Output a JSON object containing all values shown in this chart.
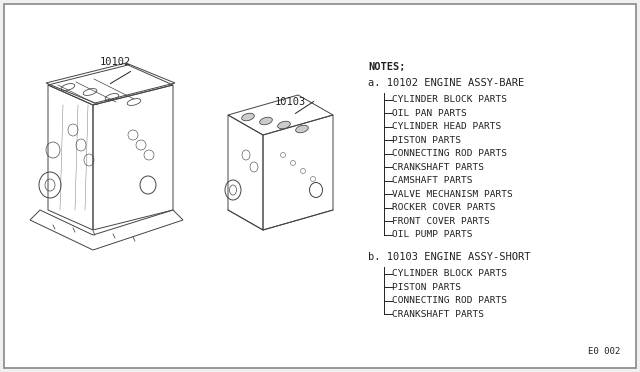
{
  "bg_color": "#f0f0f0",
  "border_color": "#888888",
  "line_color": "#444444",
  "text_color": "#222222",
  "title_part_a": "10102",
  "title_part_b": "10103",
  "notes_title": "NOTES;",
  "section_a_title": "a. 10102 ENGINE ASSY-BARE",
  "section_a_items": [
    "CYLINDER BLOCK PARTS",
    "OIL PAN PARTS",
    "CYLINDER HEAD PARTS",
    "PISTON PARTS",
    "CONNECTING ROD PARTS",
    "CRANKSHAFT PARTS",
    "CAMSHAFT PARTS",
    "VALVE MECHANISM PARTS",
    "ROCKER COVER PARTS",
    "FRONT COVER PARTS",
    "OIL PUMP PARTS"
  ],
  "section_b_title": "b. 10103 ENGINE ASSY-SHORT",
  "section_b_items": [
    "CYLINDER BLOCK PARTS",
    "PISTON PARTS",
    "CONNECTING ROD PARTS",
    "CRANKSHAFT PARTS"
  ],
  "page_num": "E0 002",
  "font_size_notes": 7.5,
  "font_size_items": 6.8,
  "font_size_labels": 7.5,
  "font_family": "monospace"
}
